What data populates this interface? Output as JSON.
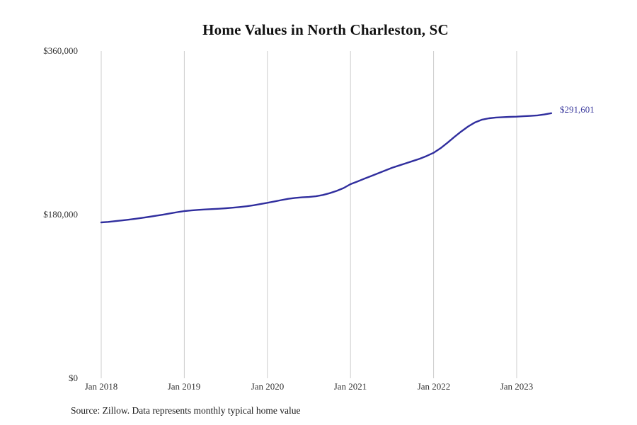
{
  "chart_data": {
    "type": "line",
    "title": "Home Values in North Charleston, SC",
    "x_tick_labels": [
      "Jan 2018",
      "Jan 2019",
      "Jan 2020",
      "Jan 2021",
      "Jan 2022",
      "Jan 2023"
    ],
    "y_tick_labels": [
      "$360,000",
      "$180,000",
      "$0"
    ],
    "ylim": [
      0,
      360000
    ],
    "x_interval": "monthly",
    "x_start": "Jan 2018",
    "end_label": "$291,601",
    "end_value": 291601,
    "source_note": "Source: Zillow. Data represents monthly typical home value",
    "line_color": "#302e9e",
    "grid_color": "#cccccc",
    "legend": "none",
    "grid": "vertical-only",
    "values": [
      171400,
      172000,
      172800,
      173600,
      174500,
      175500,
      176600,
      177700,
      178900,
      180100,
      181400,
      182700,
      183900,
      184600,
      185200,
      185700,
      186100,
      186500,
      187000,
      187600,
      188300,
      189200,
      190300,
      191600,
      193000,
      194500,
      196000,
      197400,
      198400,
      199000,
      199400,
      200200,
      201600,
      203600,
      206100,
      209200,
      213500,
      216500,
      219500,
      222500,
      225500,
      228500,
      231500,
      234000,
      236500,
      239000,
      241500,
      244500,
      248000,
      253000,
      259000,
      265500,
      271500,
      277000,
      281500,
      284500,
      286000,
      286800,
      287200,
      287500,
      287800,
      288200,
      288600,
      289200,
      290200,
      291601
    ]
  }
}
